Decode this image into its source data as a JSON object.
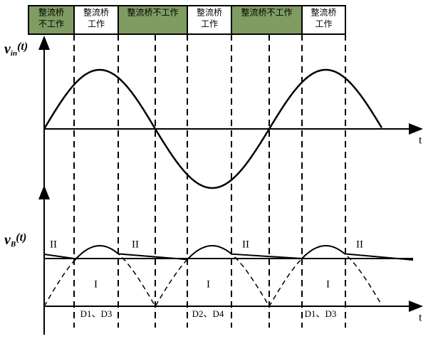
{
  "top_bar": {
    "segments": [
      {
        "lines": [
          "整流桥",
          "不工作"
        ],
        "state": "off"
      },
      {
        "lines": [
          "整流桥",
          "工作"
        ],
        "state": "on"
      },
      {
        "lines": [
          "整流桥不工作"
        ],
        "state": "off"
      },
      {
        "lines": [
          "整流桥",
          "工作"
        ],
        "state": "on"
      },
      {
        "lines": [
          "整流桥不工作"
        ],
        "state": "off"
      },
      {
        "lines": [
          "整流桥",
          "工作"
        ],
        "state": "on"
      }
    ]
  },
  "upper_axis": {
    "symbol": "v",
    "subscript": "in",
    "argument": "(t)",
    "x_label": "t"
  },
  "lower_axis": {
    "symbol": "v",
    "subscript": "B",
    "argument": "(t)",
    "x_label": "t"
  },
  "regions": [
    "II",
    "II",
    "II",
    "II"
  ],
  "inner_regions": [
    "I",
    "I",
    "I"
  ],
  "diodes": [
    "D1、D3",
    "D2、D4",
    "D1、D3"
  ]
}
